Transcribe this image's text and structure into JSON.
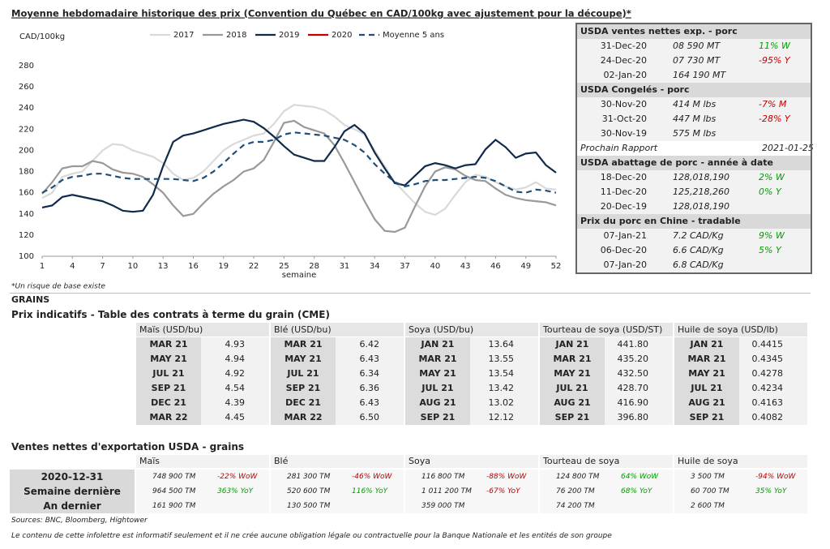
{
  "chart_data": {
    "type": "line",
    "title": "Moyenne hebdomadaire historique des prix (Convention du Québec en CAD/100kg avec ajustement pour la découpe)*",
    "ylabel": "CAD/100kg",
    "xlabel": "semaine",
    "x": [
      1,
      2,
      3,
      4,
      5,
      6,
      7,
      8,
      9,
      10,
      11,
      12,
      13,
      14,
      15,
      16,
      17,
      18,
      19,
      20,
      21,
      22,
      23,
      24,
      25,
      26,
      27,
      28,
      29,
      30,
      31,
      32,
      33,
      34,
      35,
      36,
      37,
      38,
      39,
      40,
      41,
      42,
      43,
      44,
      45,
      46,
      47,
      48,
      49,
      50,
      51,
      52
    ],
    "xlim": [
      1,
      52
    ],
    "xticks": [
      1,
      4,
      7,
      10,
      13,
      16,
      19,
      22,
      25,
      28,
      31,
      34,
      37,
      40,
      43,
      46,
      49,
      52
    ],
    "ylim": [
      100,
      280
    ],
    "yticks": [
      100,
      120,
      140,
      160,
      180,
      200,
      220,
      240,
      260,
      280
    ],
    "grid": false,
    "series": [
      {
        "name": "2017",
        "color": "#d9d9d9",
        "style": "solid",
        "values": [
          155,
          160,
          175,
          178,
          180,
          190,
          200,
          206,
          205,
          200,
          197,
          194,
          188,
          178,
          172,
          174,
          180,
          190,
          200,
          206,
          210,
          214,
          216,
          225,
          237,
          243,
          242,
          241,
          238,
          232,
          224,
          220,
          215,
          200,
          185,
          170,
          160,
          150,
          142,
          139,
          145,
          158,
          170,
          177,
          175,
          170,
          166,
          163,
          165,
          170,
          164,
          163
        ]
      },
      {
        "name": "2018",
        "color": "#999999",
        "style": "solid",
        "values": [
          159,
          170,
          183,
          185,
          185,
          190,
          188,
          182,
          179,
          178,
          175,
          168,
          160,
          148,
          138,
          140,
          150,
          159,
          166,
          172,
          180,
          183,
          191,
          208,
          226,
          228,
          222,
          219,
          216,
          205,
          188,
          170,
          152,
          135,
          124,
          123,
          127,
          147,
          166,
          180,
          184,
          182,
          176,
          172,
          171,
          164,
          158,
          155,
          153,
          152,
          151,
          148
        ]
      },
      {
        "name": "2019",
        "color": "#0f2a4a",
        "style": "solid",
        "values": [
          146,
          148,
          156,
          158,
          156,
          154,
          152,
          148,
          143,
          142,
          143,
          158,
          185,
          208,
          214,
          216,
          219,
          222,
          225,
          227,
          229,
          227,
          221,
          213,
          204,
          196,
          193,
          190,
          190,
          203,
          218,
          224,
          216,
          198,
          183,
          169,
          167,
          176,
          185,
          188,
          186,
          183,
          186,
          187,
          201,
          210,
          203,
          193,
          197,
          198,
          186,
          179
        ]
      },
      {
        "name": "2020",
        "color": "#c00000",
        "style": "solid",
        "values": [
          null,
          null,
          null,
          null,
          null,
          null,
          null,
          null,
          null,
          null,
          null,
          null,
          null,
          null,
          null,
          null,
          null,
          null,
          null,
          null,
          null,
          null,
          null,
          null,
          null,
          null,
          null,
          null,
          null,
          null,
          null,
          null,
          null,
          null,
          null,
          null,
          null,
          null,
          null,
          null,
          null,
          null,
          null,
          null,
          null,
          null,
          null,
          null,
          null,
          null,
          null,
          null
        ]
      },
      {
        "name": "Moyenne 5 ans",
        "color": "#1f4e79",
        "style": "dashed",
        "values": [
          160,
          165,
          172,
          175,
          176,
          178,
          178,
          176,
          174,
          173,
          173,
          173,
          173,
          173,
          172,
          171,
          174,
          180,
          188,
          197,
          205,
          208,
          208,
          210,
          215,
          217,
          216,
          215,
          214,
          212,
          210,
          205,
          198,
          187,
          178,
          170,
          166,
          168,
          171,
          172,
          172,
          173,
          174,
          175,
          174,
          171,
          166,
          161,
          160,
          163,
          162,
          160
        ]
      }
    ]
  },
  "chart_note": "*Un risque de base existe",
  "usda_panel": {
    "sections": [
      {
        "title": "USDA ventes nettes exp. - porc",
        "rows": [
          {
            "date": "31-Dec-20",
            "value": "08 590  MT",
            "change": "11% W"
          },
          {
            "date": "24-Dec-20",
            "value": "07 730  MT",
            "change": "-95% Y"
          },
          {
            "date": "02-Jan-20",
            "value": "164 190  MT"
          }
        ]
      },
      {
        "title": "USDA Congelés - porc",
        "rows": [
          {
            "date": "30-Nov-20",
            "value": "414 M lbs",
            "change": "-7% M"
          },
          {
            "date": "31-Oct-20",
            "value": "447 M lbs",
            "change": "-28% Y"
          },
          {
            "date": "30-Nov-19",
            "value": "575 M lbs"
          }
        ],
        "note": {
          "label": "Prochain Rapport",
          "date": "2021-01-25"
        }
      },
      {
        "title": "USDA abattage de porc - année à date",
        "rows": [
          {
            "date": "18-Dec-20",
            "value": "128,018,190",
            "change": "2% W"
          },
          {
            "date": "11-Dec-20",
            "value": "125,218,260",
            "change": "0% Y"
          },
          {
            "date": "20-Dec-19",
            "value": "128,018,190"
          }
        ]
      },
      {
        "title": "Prix du porc en Chine - tradable",
        "rows": [
          {
            "date": "07-Jan-21",
            "value": "7.2 CAD/Kg",
            "change": "9% W"
          },
          {
            "date": "06-Dec-20",
            "value": "6.6 CAD/Kg",
            "change": "5% Y"
          },
          {
            "date": "07-Jan-20",
            "value": "6.8 CAD/Kg"
          }
        ]
      }
    ]
  },
  "grains": {
    "heading": "GRAINS",
    "title": "Prix indicatifs - Table des contrats à terme du grain (CME)",
    "columns": [
      {
        "header": "Maïs (USD/bu)",
        "rows": [
          [
            "MAR 21",
            "4.93"
          ],
          [
            "MAY 21",
            "4.94"
          ],
          [
            "JUL 21",
            "4.92"
          ],
          [
            "SEP 21",
            "4.54"
          ],
          [
            "DEC 21",
            "4.39"
          ],
          [
            "MAR 22",
            "4.45"
          ]
        ]
      },
      {
        "header": "Blé (USD/bu)",
        "rows": [
          [
            "MAR 21",
            "6.42"
          ],
          [
            "MAY 21",
            "6.43"
          ],
          [
            "JUL 21",
            "6.34"
          ],
          [
            "SEP 21",
            "6.36"
          ],
          [
            "DEC 21",
            "6.43"
          ],
          [
            "MAR 22",
            "6.50"
          ]
        ]
      },
      {
        "header": "Soya (USD/bu)",
        "rows": [
          [
            "JAN 21",
            "13.64"
          ],
          [
            "MAR 21",
            "13.55"
          ],
          [
            "MAY 21",
            "13.54"
          ],
          [
            "JUL 21",
            "13.42"
          ],
          [
            "AUG 21",
            "13.02"
          ],
          [
            "SEP 21",
            "12.12"
          ]
        ]
      },
      {
        "header": "Tourteau de soya (USD/ST)",
        "rows": [
          [
            "JAN 21",
            "441.80"
          ],
          [
            "MAR 21",
            "435.20"
          ],
          [
            "MAY 21",
            "432.50"
          ],
          [
            "JUL 21",
            "428.70"
          ],
          [
            "AUG 21",
            "416.90"
          ],
          [
            "SEP 21",
            "396.80"
          ]
        ]
      },
      {
        "header": "Huile de soya (USD/lb)",
        "rows": [
          [
            "JAN 21",
            "0.4415"
          ],
          [
            "MAR 21",
            "0.4345"
          ],
          [
            "MAY 21",
            "0.4278"
          ],
          [
            "JUL 21",
            "0.4234"
          ],
          [
            "AUG 21",
            "0.4163"
          ],
          [
            "SEP 21",
            "0.4082"
          ]
        ]
      }
    ]
  },
  "export_sales": {
    "title": "Ventes nettes d'exportation USDA - grains",
    "columns": [
      "Maïs",
      "Blé",
      "Soya",
      "Tourteau de soya",
      "Huile de soya"
    ],
    "rows": [
      {
        "label": "2020-12-31",
        "cells": [
          {
            "value": "748 900 TM",
            "change": "-22% WoW"
          },
          {
            "value": "281 300 TM",
            "change": "-46% WoW"
          },
          {
            "value": "116 800 TM",
            "change": "-88% WoW"
          },
          {
            "value": "124 800 TM",
            "change": "64% WoW"
          },
          {
            "value": "3 500 TM",
            "change": "-94% WoW"
          }
        ]
      },
      {
        "label": "Semaine dernière",
        "cells": [
          {
            "value": "964 500 TM",
            "change": "363% YoY"
          },
          {
            "value": "520 600 TM",
            "change": "116% YoY"
          },
          {
            "value": "1 011 200 TM",
            "change": "-67% YoY"
          },
          {
            "value": "76 200 TM",
            "change": "68% YoY"
          },
          {
            "value": "60 700 TM",
            "change": "35% YoY"
          }
        ]
      },
      {
        "label": "An dernier",
        "cells": [
          {
            "value": "161 900 TM"
          },
          {
            "value": "130 500 TM"
          },
          {
            "value": "359 000 TM"
          },
          {
            "value": "74 200 TM"
          },
          {
            "value": "2 600 TM"
          }
        ]
      }
    ]
  },
  "footer": {
    "sources": "Sources: BNC, Bloomberg, Hightower",
    "disclaimer": "Le contenu de cette infolettre est informatif seulement et il ne crée aucune obligation légale ou contractuelle pour la Banque Nationale et les entités de son groupe"
  }
}
